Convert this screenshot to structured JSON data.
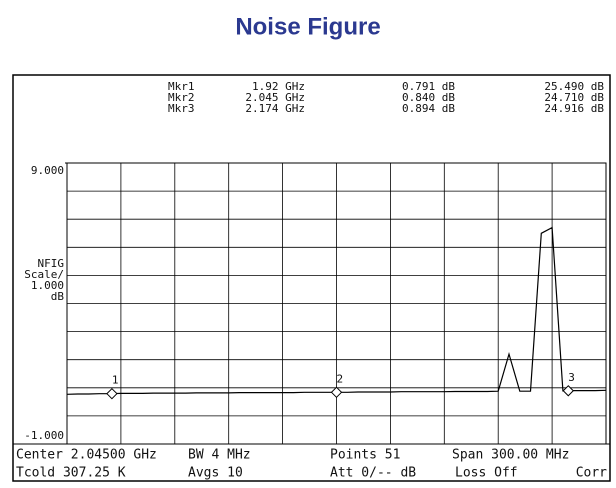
{
  "chart_data": {
    "type": "line",
    "title": "Noise Figure",
    "ylabel": [
      "NFIG",
      "Scale/",
      "1.000",
      "dB"
    ],
    "xlim": [
      1.895,
      2.195
    ],
    "ylim": [
      -1,
      9
    ],
    "yticks": [
      {
        "value": 9,
        "label": "9.000"
      },
      {
        "value": -1,
        "label": "-1.000"
      }
    ],
    "grid": true,
    "color": "#000000",
    "x": [
      1.895,
      1.901,
      1.907,
      1.913,
      1.919,
      1.925,
      1.931,
      1.937,
      1.943,
      1.949,
      1.955,
      1.961,
      1.967,
      1.973,
      1.979,
      1.985,
      1.991,
      1.997,
      2.003,
      2.009,
      2.015,
      2.021,
      2.027,
      2.033,
      2.039,
      2.045,
      2.051,
      2.057,
      2.063,
      2.069,
      2.075,
      2.081,
      2.087,
      2.093,
      2.099,
      2.105,
      2.111,
      2.117,
      2.123,
      2.129,
      2.135,
      2.141,
      2.147,
      2.153,
      2.159,
      2.165,
      2.171,
      2.177,
      2.183,
      2.189,
      2.195
    ],
    "values": [
      0.77,
      0.78,
      0.78,
      0.79,
      0.79,
      0.8,
      0.8,
      0.8,
      0.81,
      0.81,
      0.81,
      0.81,
      0.82,
      0.82,
      0.82,
      0.82,
      0.83,
      0.83,
      0.83,
      0.83,
      0.83,
      0.83,
      0.84,
      0.84,
      0.84,
      0.84,
      0.84,
      0.85,
      0.85,
      0.85,
      0.85,
      0.86,
      0.86,
      0.86,
      0.86,
      0.86,
      0.87,
      0.87,
      0.87,
      0.87,
      0.88,
      2.2,
      0.88,
      0.88,
      6.5,
      6.7,
      0.89,
      0.9,
      0.9,
      0.9,
      0.91
    ],
    "markers": [
      {
        "name": "Mkr1",
        "symbol": "1",
        "x": 1.92,
        "x_label": "1.92 GHz",
        "nf": 0.791,
        "nf_label": "0.791 dB",
        "gain": 25.49,
        "gain_label": "25.490 dB"
      },
      {
        "name": "Mkr2",
        "symbol": "2",
        "x": 2.045,
        "x_label": "2.045 GHz",
        "nf": 0.84,
        "nf_label": "0.840 dB",
        "gain": 24.71,
        "gain_label": "24.710 dB"
      },
      {
        "name": "Mkr3",
        "symbol": "3",
        "x": 2.174,
        "x_label": "2.174 GHz",
        "nf": 0.894,
        "nf_label": "0.894 dB",
        "gain": 24.916,
        "gain_label": "24.916 dB"
      }
    ],
    "status": [
      [
        "Center 2.04500 GHz",
        "BW 4 MHz",
        "Points 51",
        "Span 300.00 MHz"
      ],
      [
        "Tcold 307.25 K",
        "Avgs 10",
        "Att 0/-- dB",
        "Loss Off",
        "Corr"
      ]
    ]
  }
}
